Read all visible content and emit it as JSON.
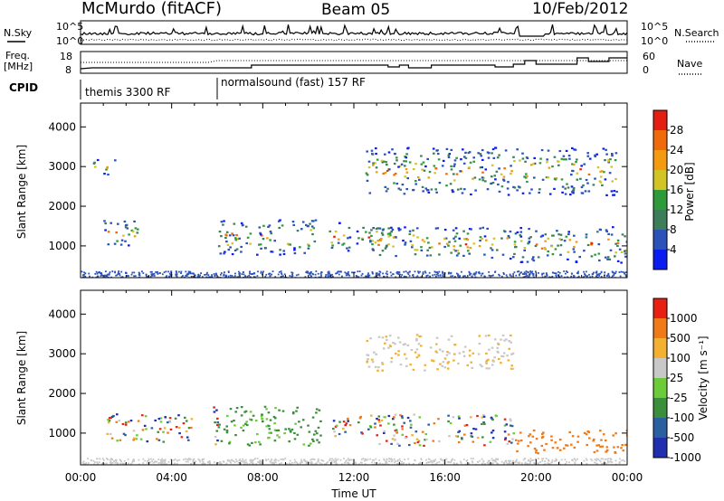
{
  "header": {
    "station": "McMurdo (fitACF)",
    "beam": "Beam 05",
    "date": "10/Feb/2012"
  },
  "noise_panel": {
    "left_label": "N.Sky",
    "right_label": "N.Search",
    "tick_top": "10^5",
    "tick_bottom": "10^0"
  },
  "freq_panel": {
    "left_label_1": "Freq.",
    "left_label_2": "[MHz]",
    "right_label": "Nave",
    "left_ticks": [
      "18",
      "8"
    ],
    "right_ticks": [
      "60",
      "0"
    ]
  },
  "cpid": {
    "label": "CPID",
    "segments": [
      {
        "name": "themis 3300 RF",
        "start_hour": 0.0,
        "end_hour": 6.0
      },
      {
        "name": "normalsound (fast) 157 RF",
        "start_hour": 6.0,
        "end_hour": 24.0
      }
    ]
  },
  "chart_data": [
    {
      "type": "heatmap",
      "name": "power",
      "ylabel": "Slant Range [km]",
      "y_ticks": [
        "4000",
        "3000",
        "2000",
        "1000"
      ],
      "ylim": [
        200,
        4600
      ],
      "xlim": [
        0,
        24
      ],
      "colorbar_label": "Power [dB]",
      "colorbar_ticks": [
        "28",
        "24",
        "20",
        "16",
        "12",
        "8",
        "4"
      ],
      "colorbar_colors": [
        "#0a1cf0",
        "#2b52b8",
        "#3c7d5a",
        "#2f9a3a",
        "#d2c424",
        "#f39a10",
        "#f06a0c",
        "#e41e10"
      ],
      "scatter_regions": [
        {
          "t0": 0.5,
          "t1": 1.5,
          "r0": 2800,
          "r1": 3200
        },
        {
          "t0": 1.0,
          "t1": 2.6,
          "r0": 1000,
          "r1": 1700
        },
        {
          "t0": 6.0,
          "t1": 10.3,
          "r0": 800,
          "r1": 1700
        },
        {
          "t0": 10.8,
          "t1": 13.5,
          "r0": 900,
          "r1": 1600
        },
        {
          "t0": 12.5,
          "t1": 23.5,
          "r0": 2300,
          "r1": 3500
        },
        {
          "t0": 13.0,
          "t1": 19.0,
          "r0": 700,
          "r1": 1500
        },
        {
          "t0": 19.0,
          "t1": 24.0,
          "r0": 600,
          "r1": 1500
        }
      ]
    },
    {
      "type": "heatmap",
      "name": "velocity",
      "ylabel": "Slant Range [km]",
      "xlabel": "Time UT",
      "x_ticks": [
        "00:00",
        "04:00",
        "08:00",
        "12:00",
        "16:00",
        "20:00",
        "00:00"
      ],
      "y_ticks": [
        "4000",
        "3000",
        "2000",
        "1000"
      ],
      "ylim": [
        200,
        4600
      ],
      "xlim": [
        0,
        24
      ],
      "colorbar_label": "Velocity [m s⁻¹]",
      "colorbar_ticks": [
        "1000",
        "500",
        "100",
        "25",
        "-25",
        "-100",
        "-500",
        "-1000"
      ],
      "colorbar_colors": [
        "#1f2fb0",
        "#2a5fa0",
        "#3a8f3a",
        "#6ccb38",
        "#c8c8c8",
        "#f4b030",
        "#f07a18",
        "#e82012"
      ],
      "scatter_regions": [
        {
          "t0": 1.0,
          "t1": 5.0,
          "r0": 800,
          "r1": 1500
        },
        {
          "t0": 5.8,
          "t1": 10.5,
          "r0": 700,
          "r1": 1700
        },
        {
          "t0": 11.0,
          "t1": 13.0,
          "r0": 900,
          "r1": 1500
        },
        {
          "t0": 12.5,
          "t1": 19.0,
          "r0": 2600,
          "r1": 3500
        },
        {
          "t0": 13.0,
          "t1": 19.0,
          "r0": 700,
          "r1": 1500
        },
        {
          "t0": 19.0,
          "t1": 24.0,
          "r0": 500,
          "r1": 1100
        }
      ]
    }
  ]
}
